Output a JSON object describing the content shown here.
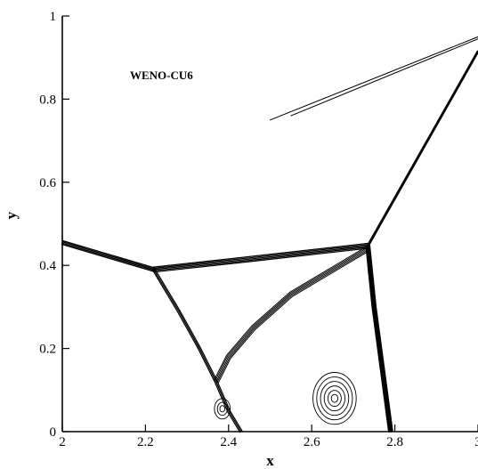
{
  "chart_data": {
    "type": "contour",
    "title": "",
    "annotation": "WENO-CU6",
    "xlabel": "x",
    "ylabel": "y",
    "xlim": [
      2,
      3
    ],
    "ylim": [
      0,
      1
    ],
    "x_ticks": [
      2,
      2.2,
      2.4,
      2.6,
      2.8,
      3
    ],
    "x_tick_labels": [
      "2",
      "2.2",
      "2.4",
      "2.6",
      "2.8",
      "3"
    ],
    "y_ticks": [
      0,
      0.2,
      0.4,
      0.6,
      0.8,
      1
    ],
    "y_tick_labels": [
      "0",
      "0.2",
      "0.4",
      "0.6",
      "0.8",
      "1"
    ],
    "grid": false,
    "line_color": "#000000",
    "background": "#ffffff",
    "features": [
      {
        "name": "incident-shock",
        "points": [
          [
            2.0,
            0.455
          ],
          [
            2.22,
            0.39
          ]
        ],
        "bundle": 4,
        "weight": 1.3
      },
      {
        "name": "mach-stem-upper",
        "points": [
          [
            2.22,
            0.39
          ],
          [
            2.45,
            0.415
          ],
          [
            2.735,
            0.447
          ]
        ],
        "bundle": 5,
        "weight": 1.2
      },
      {
        "name": "reflected-shock",
        "points": [
          [
            2.735,
            0.447
          ],
          [
            3.0,
            0.915
          ]
        ],
        "bundle": 2,
        "weight": 1.5
      },
      {
        "name": "main-vertical-shock",
        "points": [
          [
            2.735,
            0.447
          ],
          [
            2.75,
            0.3
          ],
          [
            2.77,
            0.15
          ],
          [
            2.79,
            0.0
          ]
        ],
        "bundle": 4,
        "weight": 1.6
      },
      {
        "name": "slip-line-upper",
        "points": [
          [
            2.735,
            0.44
          ],
          [
            2.55,
            0.33
          ],
          [
            2.46,
            0.25
          ],
          [
            2.4,
            0.18
          ],
          [
            2.37,
            0.12
          ]
        ],
        "bundle": 5,
        "weight": 1.0
      },
      {
        "name": "slip-line-lower",
        "points": [
          [
            2.22,
            0.39
          ],
          [
            2.28,
            0.29
          ],
          [
            2.33,
            0.2
          ],
          [
            2.37,
            0.12
          ],
          [
            2.4,
            0.05
          ],
          [
            2.43,
            0.0
          ]
        ],
        "bundle": 3,
        "weight": 1.2
      },
      {
        "name": "triple-point-arc-1",
        "points": [
          [
            2.5,
            0.75
          ],
          [
            3.0,
            0.95
          ]
        ],
        "bundle": 1,
        "weight": 1.0
      },
      {
        "name": "triple-point-arc-2",
        "points": [
          [
            2.55,
            0.76
          ],
          [
            3.0,
            0.945
          ]
        ],
        "bundle": 1,
        "weight": 1.0
      }
    ],
    "vortices": [
      {
        "name": "vortex-right",
        "center": [
          2.655,
          0.08
        ],
        "radii": [
          0.008,
          0.016,
          0.025,
          0.034,
          0.043,
          0.052
        ],
        "aspect": 1.2
      },
      {
        "name": "vortex-left",
        "center": [
          2.385,
          0.055
        ],
        "radii": [
          0.006,
          0.012,
          0.019
        ],
        "aspect": 1.3
      }
    ]
  }
}
